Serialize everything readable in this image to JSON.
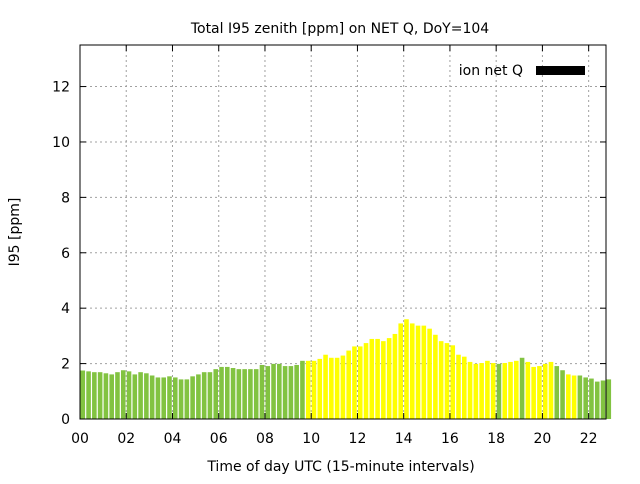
{
  "chart_data": {
    "type": "bar",
    "title": "Total I95 zenith [ppm] on NET Q, DoY=104",
    "xlabel": "Time of day UTC (15-minute intervals)",
    "ylabel": "I95 [ppm]",
    "xlim": [
      0,
      22.75
    ],
    "ylim": [
      0,
      13.5
    ],
    "x_ticks": [
      "00",
      "02",
      "04",
      "06",
      "08",
      "10",
      "12",
      "14",
      "16",
      "18",
      "20",
      "22"
    ],
    "x_tick_values": [
      0,
      2,
      4,
      6,
      8,
      10,
      12,
      14,
      16,
      18,
      20,
      22
    ],
    "y_ticks": [
      0,
      2,
      4,
      6,
      8,
      10,
      12
    ],
    "grid": true,
    "legend": {
      "label": "ion net Q",
      "color": "#000000",
      "placement": "top-right"
    },
    "bar_interval_hours": 0.25,
    "palette": {
      "g": "#82c341",
      "y": "#ffff00"
    },
    "values": [
      1.75,
      1.72,
      1.69,
      1.69,
      1.65,
      1.61,
      1.69,
      1.76,
      1.72,
      1.61,
      1.69,
      1.65,
      1.57,
      1.5,
      1.5,
      1.54,
      1.5,
      1.43,
      1.43,
      1.54,
      1.61,
      1.69,
      1.69,
      1.8,
      1.88,
      1.88,
      1.84,
      1.8,
      1.8,
      1.8,
      1.8,
      1.95,
      1.91,
      1.99,
      1.99,
      1.91,
      1.91,
      1.95,
      2.1,
      2.1,
      2.1,
      2.17,
      2.32,
      2.21,
      2.21,
      2.29,
      2.47,
      2.62,
      2.62,
      2.74,
      2.89,
      2.89,
      2.81,
      2.92,
      3.07,
      3.45,
      3.6,
      3.45,
      3.37,
      3.37,
      3.26,
      3.04,
      2.81,
      2.74,
      2.66,
      2.32,
      2.25,
      2.06,
      1.99,
      2.02,
      2.1,
      2.02,
      1.99,
      2.02,
      2.06,
      2.1,
      2.21,
      2.06,
      1.88,
      1.91,
      1.99,
      2.06,
      1.91,
      1.76,
      1.61,
      1.57,
      1.57,
      1.5,
      1.46,
      1.35,
      1.39,
      1.43
    ],
    "colors": "gggggggggggggggggggggggggggggggggggggggyyyyyyyyyyyyyyyyyyyyyyyyyyyyyyyyygyyygyyyyyggyygggggggggg"
  }
}
